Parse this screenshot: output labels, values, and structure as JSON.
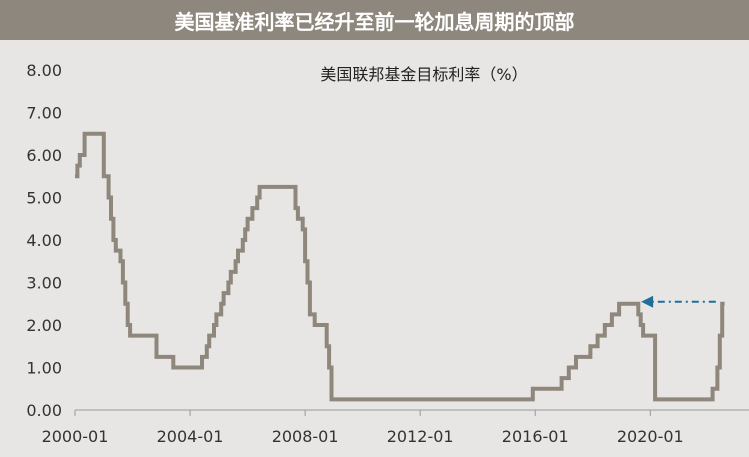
{
  "header": {
    "title": "美国基准利率已经升至前一轮加息周期的顶部"
  },
  "colors": {
    "title_bar": "#8e877d",
    "background": "#e8e6e4",
    "line": "#8f867c",
    "axis": "#999999",
    "arrow": "#1f6f9a",
    "text": "#333333"
  },
  "chart_data": {
    "type": "line",
    "step": true,
    "title": "美国联邦基金目标利率（%）",
    "xlabel": "",
    "ylabel": "",
    "ylim": [
      0,
      8
    ],
    "xlim": [
      "2000-01",
      "2022-09"
    ],
    "grid": false,
    "y_ticks": [
      "0.00",
      "1.00",
      "2.00",
      "3.00",
      "4.00",
      "5.00",
      "6.00",
      "7.00",
      "8.00"
    ],
    "x_ticks": [
      "2000-01",
      "2004-01",
      "2008-01",
      "2012-01",
      "2016-01",
      "2020-01"
    ],
    "series": [
      {
        "x": [
          "2000-01",
          "2000-02",
          "2000-03",
          "2000-05",
          "2000-07",
          "2001-01",
          "2001-02",
          "2001-03",
          "2001-04",
          "2001-05",
          "2001-06",
          "2001-08",
          "2001-09",
          "2001-10",
          "2001-11",
          "2001-12",
          "2002-11",
          "2003-06",
          "2004-06",
          "2004-08",
          "2004-09",
          "2004-11",
          "2004-12",
          "2005-02",
          "2005-03",
          "2005-05",
          "2005-06",
          "2005-08",
          "2005-09",
          "2005-11",
          "2005-12",
          "2006-01",
          "2006-03",
          "2006-05",
          "2006-06",
          "2007-09",
          "2007-10",
          "2007-12",
          "2008-01",
          "2008-02",
          "2008-03",
          "2008-05",
          "2008-10",
          "2008-11",
          "2008-12",
          "2015-12",
          "2016-12",
          "2017-03",
          "2017-06",
          "2017-12",
          "2018-03",
          "2018-06",
          "2018-09",
          "2018-12",
          "2019-08",
          "2019-09",
          "2019-10",
          "2020-03",
          "2020-04",
          "2022-03",
          "2022-05",
          "2022-06",
          "2022-07",
          "2022-08"
        ],
        "y": [
          5.5,
          5.75,
          6.0,
          6.5,
          6.5,
          5.5,
          5.5,
          5.0,
          4.5,
          4.0,
          3.75,
          3.5,
          3.0,
          2.5,
          2.0,
          1.75,
          1.25,
          1.0,
          1.25,
          1.5,
          1.75,
          2.0,
          2.25,
          2.5,
          2.75,
          3.0,
          3.25,
          3.5,
          3.75,
          4.0,
          4.25,
          4.5,
          4.75,
          5.0,
          5.25,
          4.75,
          4.5,
          4.25,
          3.5,
          3.0,
          2.25,
          2.0,
          1.5,
          1.0,
          0.25,
          0.5,
          0.75,
          1.0,
          1.25,
          1.5,
          1.75,
          2.0,
          2.25,
          2.5,
          2.25,
          2.0,
          1.75,
          0.25,
          0.25,
          0.5,
          1.0,
          1.75,
          2.5,
          2.5
        ]
      }
    ],
    "annotation": {
      "type": "arrow",
      "style": "dash-dot",
      "direction": "left",
      "from": {
        "x": "2022-06",
        "y": 2.5
      },
      "to": {
        "x": "2018-12",
        "y": 2.5
      }
    }
  }
}
